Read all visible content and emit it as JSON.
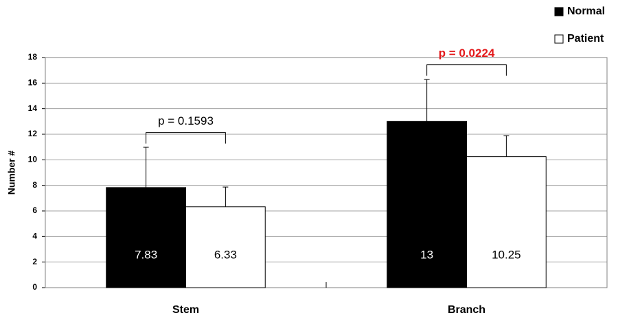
{
  "chart_data": {
    "type": "bar",
    "y_label": "Number #",
    "categories": [
      "Stem",
      "Branch"
    ],
    "series": [
      {
        "name": "Normal",
        "color": "#000000",
        "label_color": "#ffffff",
        "values": [
          7.83,
          13
        ],
        "errors": [
          3.15,
          3.28
        ]
      },
      {
        "name": "Patient",
        "color": "#ffffff",
        "label_color": "#000000",
        "values": [
          6.33,
          10.25
        ],
        "errors": [
          1.54,
          1.64
        ]
      }
    ],
    "annotations": [
      {
        "text": "p = 0.1593",
        "color": "#000000",
        "bold": false
      },
      {
        "text": "p = 0.0224",
        "color": "#e31a1c",
        "bold": true
      }
    ],
    "ylim": [
      0,
      18
    ],
    "yticks": [
      0,
      2,
      4,
      6,
      8,
      10,
      12,
      14,
      16,
      18
    ],
    "grid": true,
    "legend": "top-right"
  }
}
